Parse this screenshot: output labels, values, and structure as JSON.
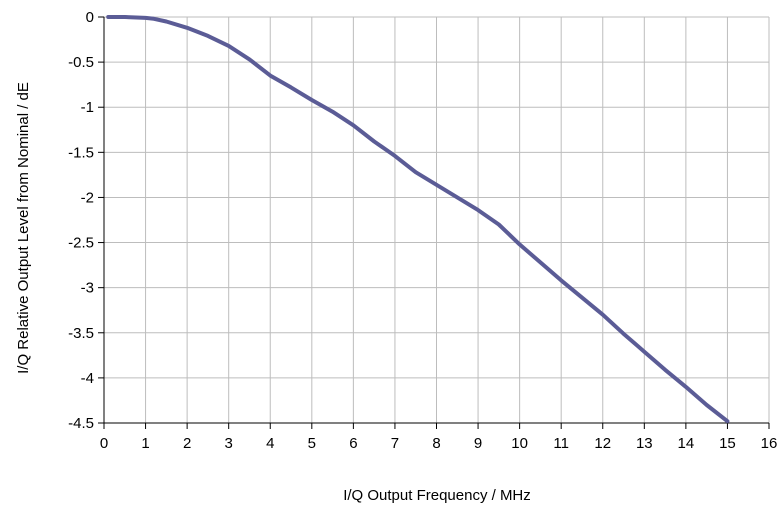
{
  "chart_data": {
    "type": "line",
    "title": "",
    "xlabel": "I/Q Output Frequency / MHz",
    "ylabel": "I/Q Relative Output Level from Nominal / dE",
    "xlim": [
      0,
      16
    ],
    "ylim": [
      -4.5,
      0
    ],
    "x_ticks": [
      "0",
      "1",
      "2",
      "3",
      "4",
      "5",
      "6",
      "7",
      "8",
      "9",
      "10",
      "11",
      "12",
      "13",
      "14",
      "15",
      "16"
    ],
    "y_ticks": [
      "0",
      "-0.5",
      "-1",
      "-1.5",
      "-2",
      "-2.5",
      "-3",
      "-3.5",
      "-4",
      "-4.5"
    ],
    "grid": true,
    "legend": "none",
    "line_color": "#5b5c96",
    "series": [
      {
        "x": [
          0.1,
          0.5,
          1.0,
          1.2,
          1.5,
          2.0,
          2.5,
          3.0,
          3.5,
          4.0,
          4.5,
          5.0,
          5.5,
          6.0,
          6.5,
          7.0,
          7.5,
          8.0,
          8.5,
          9.0,
          9.5,
          10.0,
          10.5,
          11.0,
          11.5,
          12.0,
          12.5,
          13.0,
          13.5,
          14.0,
          14.5,
          15.0
        ],
        "y": [
          0.0,
          0.0,
          -0.01,
          -0.02,
          -0.05,
          -0.12,
          -0.21,
          -0.32,
          -0.47,
          -0.65,
          -0.78,
          -0.92,
          -1.05,
          -1.2,
          -1.38,
          -1.54,
          -1.72,
          -1.86,
          -2.0,
          -2.14,
          -2.3,
          -2.52,
          -2.72,
          -2.92,
          -3.11,
          -3.3,
          -3.51,
          -3.71,
          -3.91,
          -4.1,
          -4.3,
          -4.48
        ]
      }
    ]
  }
}
